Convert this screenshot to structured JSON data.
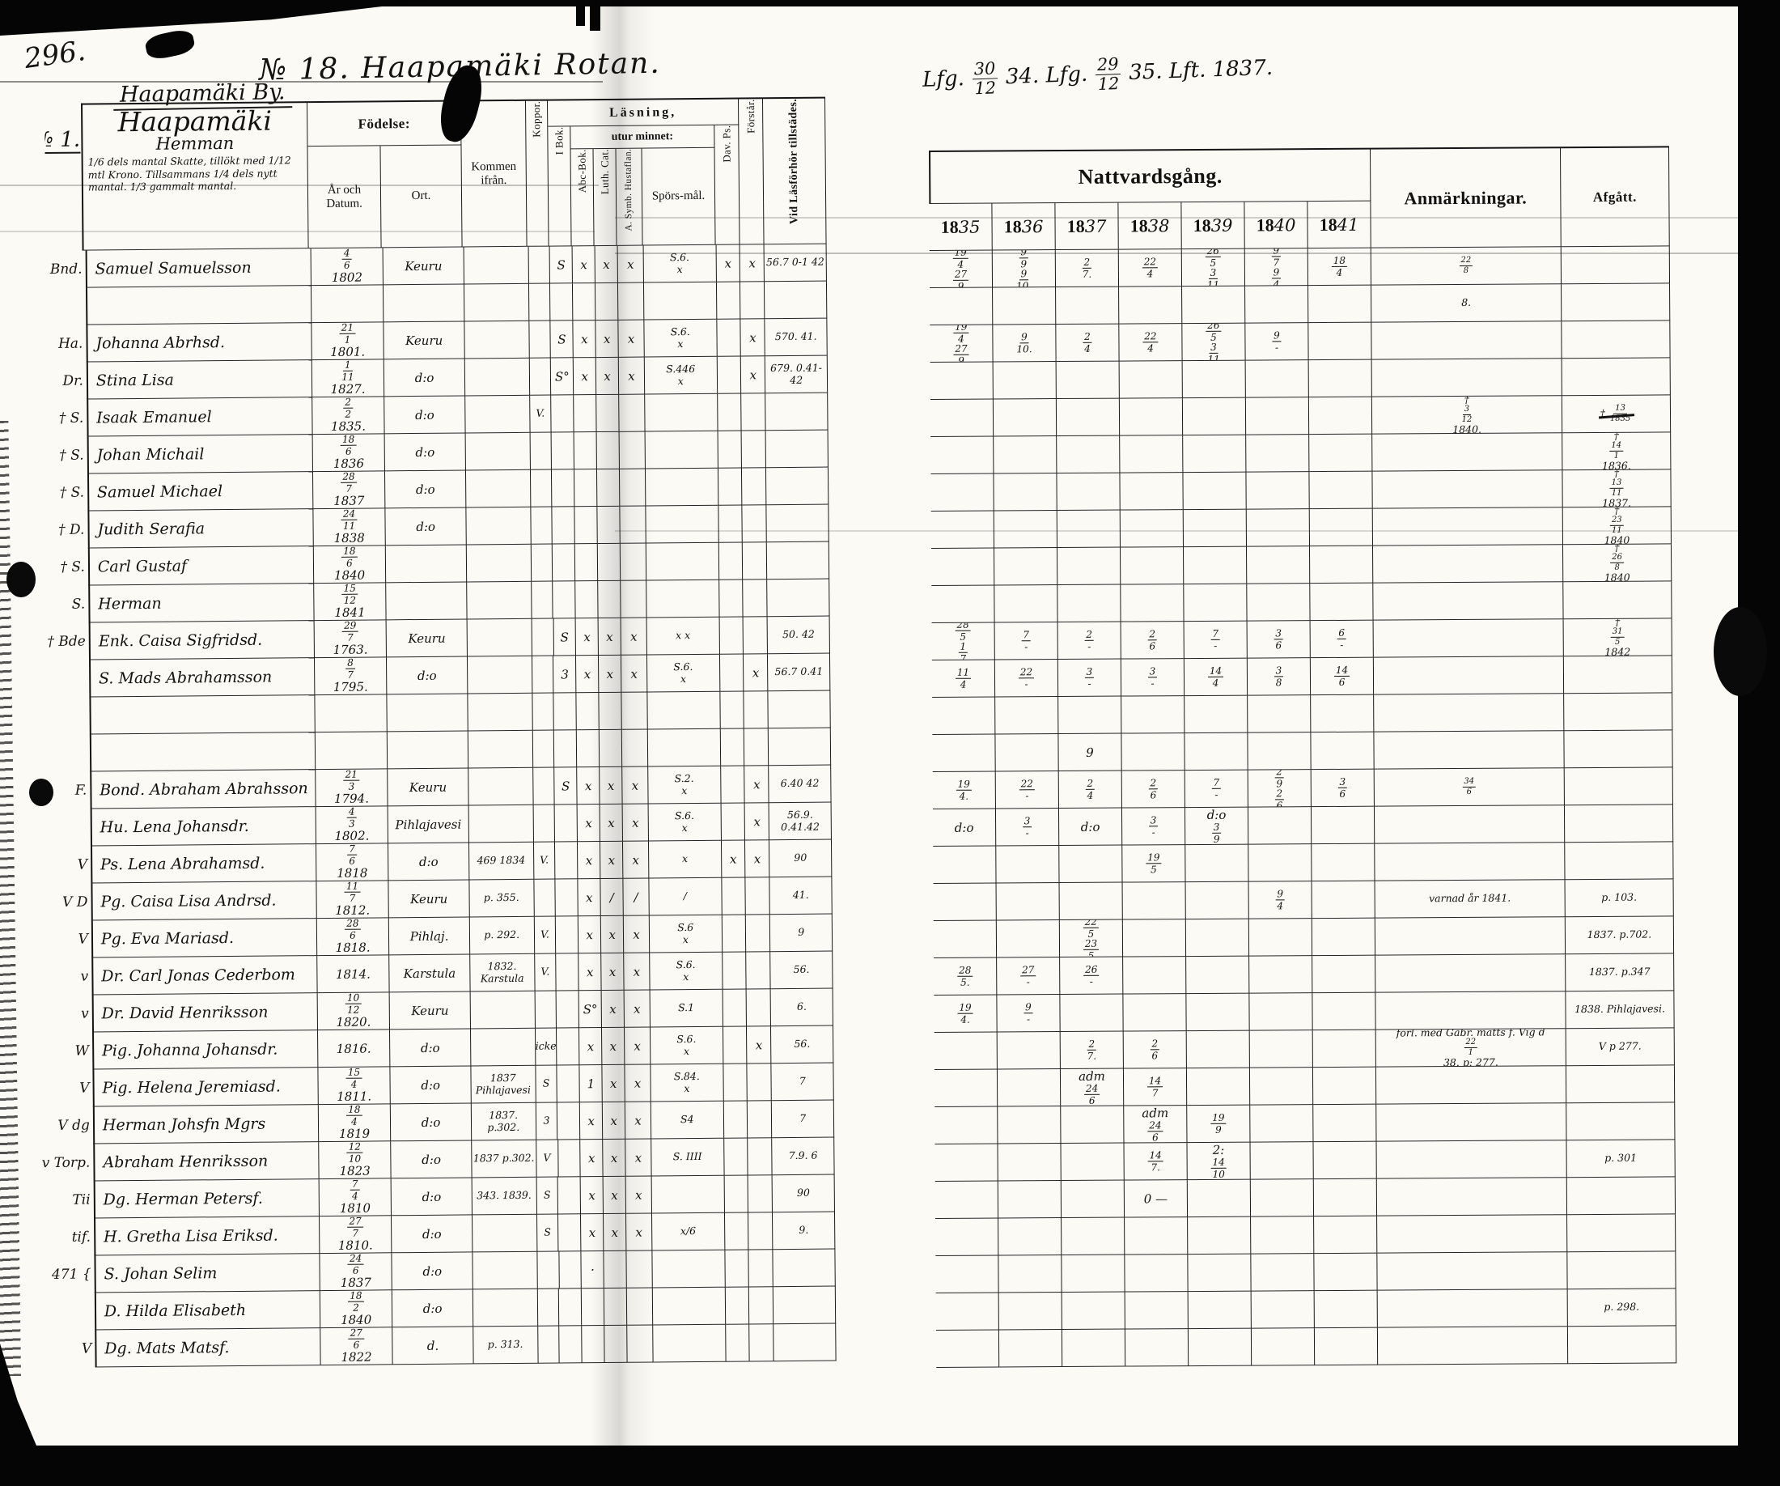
{
  "page": {
    "number": "296.",
    "title": "№ 18.  Haapamäki  Rotan.",
    "village": "Haapamäki By.",
    "top_note": "Lfg. 30/12 34.  Lfg. 29/12 35.  Lft. 1837."
  },
  "left_table": {
    "farm": {
      "no": "№ 1.",
      "name": "Haapamäki",
      "sub": "Hemman",
      "note": "1/6 dels mantal Skatte, till­ökt med 1/12 mtl Krono. Till­sammans 1/4 dels nytt mantal. 1/3 gammalt mantal."
    },
    "cols": {
      "fodelse": "Födelse:",
      "ar": "År och Datum.",
      "ort": "Ort.",
      "kommen": "Kommen ifrån.",
      "koppor": "Koppor.",
      "lasning": "Läsning,",
      "utur": "utur minnet:",
      "ibok": "I Bok.",
      "abc": "Abc-Bok.",
      "luth": "Luth. Cat.",
      "hust": "A. Symb. Hustaflan.",
      "spors": "Spörs-mål.",
      "dav": "Dav. Ps.",
      "forstar": "Förstår.",
      "forhor": "Vid Läsförhör tillstädes."
    }
  },
  "right_table": {
    "natt": "Nattvardsgång.",
    "years": [
      "1835",
      "1836",
      "1837",
      "1838",
      "1839",
      "1840",
      "1841"
    ],
    "anm": "Anmärkningar.",
    "afgatt": "Afgått."
  },
  "rows": [
    {
      "mg": "Bnd.",
      "nm": "Samuel Samuelsson",
      "dt": "4/6",
      "yr": "1802",
      "ort": "Keuru",
      "ib": "S",
      "ab": "x",
      "lu": "x",
      "hu": "x",
      "sp": "S.6.",
      "sp2": "x",
      "dv": "x",
      "fs": "x",
      "fh": "56.7 0-1 42",
      "nt": [
        "19/4 27/9",
        "9/9 9/10.",
        "2/7.",
        "22/4",
        "26/5 3/11",
        "9/7 9/4",
        "18/4"
      ],
      "an": "22/8",
      "af": ""
    },
    {
      "nm": "",
      "nt": [
        "",
        "",
        "",
        "",
        "",
        "",
        ""
      ],
      "an": "8."
    },
    {
      "mg": "Ha.",
      "nm": "Johanna Abrhsd.",
      "dt": "21/1",
      "yr": "1801.",
      "ort": "Keuru",
      "ib": "S",
      "ab": "x",
      "lu": "x",
      "hu": "x",
      "sp": "S.6.",
      "sp2": "x",
      "fs": "x",
      "fh": "570. 41.",
      "nt": [
        "19/4 27/9",
        "9/10.",
        "2/4",
        "22/4",
        "26/5 3/11",
        "9/-",
        ""
      ]
    },
    {
      "mg": "Dr.",
      "nm": "Stina Lisa",
      "dt": "1/11",
      "yr": "1827.",
      "ort": "d:o",
      "ib": "S°",
      "ab": "x",
      "lu": "x",
      "hu": "x",
      "sp": "S.446",
      "sp2": "x",
      "fs": "x",
      "fh": "679. 0.41-42"
    },
    {
      "mg": "† S.",
      "nm": "Isaak Emanuel",
      "dt": "2/2",
      "yr": "1835.",
      "ort": "d:o",
      "kp": "V.",
      "an": "† 3/12 1840.",
      "af": "† 13/1835",
      "afStruck": true
    },
    {
      "mg": "† S.",
      "nm": "Johan Michail",
      "dt": "18/6",
      "yr": "1836",
      "ort": "d:o",
      "af": "† 14/1 1836."
    },
    {
      "mg": "† S.",
      "nm": "Samuel Michael",
      "dt": "28/7",
      "yr": "1837",
      "ort": "d:o",
      "af": "† 13/11 1837."
    },
    {
      "mg": "† D.",
      "nm": "Judith Serafia",
      "dt": "24/11",
      "yr": "1838",
      "ort": "d:o",
      "af": "† 23/11 1840"
    },
    {
      "mg": "† S.",
      "nm": "Carl Gustaf",
      "dt": "18/6",
      "yr": "1840",
      "af": "† 26/8 1840"
    },
    {
      "mg": "S.",
      "nm": "Herman",
      "dt": "15/12",
      "yr": "1841"
    },
    {
      "mg": "† Bde",
      "nm": "Enk. Caisa Sigfridsd.",
      "dt": "29/7",
      "yr": "1763.",
      "ort": "Keuru",
      "ib": "S",
      "ab": "x",
      "lu": "x",
      "hu": "x",
      "sp2": "x x",
      "fh": "50. 42",
      "nt": [
        "28/5 1/7",
        "7/-",
        "2/-",
        "2/6",
        "7/-",
        "3/6",
        "6/-"
      ],
      "af": "† 31/5 1842"
    },
    {
      "nm": "S. Mads Abrahamsson",
      "dt": "8/7",
      "yr": "1795.",
      "ort": "d:o",
      "ib": "3",
      "ab": "x",
      "lu": "x",
      "hu": "x",
      "sp": "S.6.",
      "sp2": "x",
      "fs": "x",
      "fh": "56.7 0.41",
      "nt": [
        "11/4",
        "22/-",
        "3/-",
        "3/-",
        "14/4",
        "3/8",
        "14/6"
      ]
    },
    {},
    {
      "nt": [
        "",
        "",
        "9",
        "",
        "",
        "",
        ""
      ]
    },
    {
      "mg": "F.",
      "nm": "Bond. Abraham Abrahsson",
      "dt": "21/3",
      "yr": "1794.",
      "ort": "Keuru",
      "ib": "S",
      "ab": "x",
      "lu": "x",
      "hu": "x",
      "sp": "S.2.",
      "sp2": "x",
      "fs": "x",
      "fh": "6.40 42",
      "nt": [
        "19/4.",
        "22/-",
        "2/4",
        "2/6",
        "7/-",
        "2/9 2/6",
        "3/6"
      ],
      "an": "34/6"
    },
    {
      "nm": "Hu. Lena Johansdr.",
      "dt": "4/3",
      "yr": "1802.",
      "ort": "Pihlajavesi",
      "ab": "x",
      "lu": "x",
      "hu": "x",
      "sp": "S.6.",
      "sp2": "x",
      "fs": "x",
      "fh": "56.9. 0.41.42",
      "nt": [
        "d:o",
        "3/-",
        "d:o",
        "3/-",
        "d:o 3/9",
        "",
        ""
      ]
    },
    {
      "mg": "V",
      "nm": "Ps. Lena Abrahamsd.",
      "dt": "7/6",
      "yr": "1818",
      "ort": "d:o",
      "km": "469 1834",
      "kp": "V.",
      "ab": "x",
      "lu": "x",
      "hu": "x",
      "sp2": "x",
      "dv": "x",
      "fs": "x",
      "fh": "90",
      "nt": [
        "",
        "",
        "",
        "19/5",
        "",
        "",
        ""
      ]
    },
    {
      "mg": "V D",
      "nm": "Pg. Caisa Lisa Andrsd.",
      "dt": "11/7",
      "yr": "1812.",
      "ort": "Keuru",
      "km": "p. 355.",
      "ab": "x",
      "lu": "/",
      "hu": "/",
      "sp2": "/",
      "fh": "41.",
      "nt": [
        "",
        "",
        "",
        "",
        "",
        "9/4",
        ""
      ],
      "an": "varnad år 1841.",
      "af": "p. 103."
    },
    {
      "mg": "V",
      "nm": "Pg. Eva Mariasd.",
      "dt": "28/6",
      "yr": "1818.",
      "ort": "Pihlaj.",
      "km": "p. 292.",
      "kp": "V.",
      "ab": "x",
      "lu": "x",
      "hu": "x",
      "sp": "S.6",
      "sp2": "x",
      "fh": "9",
      "nt": [
        "",
        "",
        "22/5 23/5",
        "",
        "",
        "",
        ""
      ],
      "af": "1837. p.702."
    },
    {
      "mg": "v",
      "nm": "Dr. Carl Jonas Cederbom",
      "yr": "1814.",
      "ort": "Karstula",
      "km": "1832. Karstula",
      "kp": "V.",
      "ab": "x",
      "lu": "x",
      "hu": "x",
      "sp": "S.6.",
      "sp2": "x",
      "fh": "56.",
      "nt": [
        "28/5.",
        "27/-",
        "26/-",
        "",
        "",
        "",
        ""
      ],
      "af": "1837. p.347"
    },
    {
      "mg": "v",
      "nm": "Dr. David Henriksson",
      "dt": "10/12",
      "yr": "1820.",
      "ort": "Keuru",
      "ab": "S°",
      "lu": "x",
      "hu": "x",
      "sp": "S.1",
      "fh": "6.",
      "nt": [
        "19/4.",
        "9/-",
        "",
        "",
        "",
        "",
        ""
      ],
      "af": "1838. Pihlajavesi."
    },
    {
      "mg": "W",
      "nm": "Pig. Johanna Johansdr.",
      "yr": "1816.",
      "ort": "d:o",
      "kp": "icke",
      "ab": "x",
      "lu": "x",
      "hu": "x",
      "sp": "S.6.",
      "sp2": "x",
      "fs": "x",
      "fh": "56.",
      "nt": [
        "",
        "",
        "2/7.",
        "2/6",
        "",
        "",
        ""
      ],
      "an": "förl. med Gabr. matts f. Vig d 22/1 38.  p: 277.",
      "af": "V p 277."
    },
    {
      "mg": "V",
      "nm": "Pig. Helena Jeremiasd.",
      "dt": "15/4",
      "yr": "1811.",
      "ort": "d:o",
      "km": "1837 Pihlajavesi",
      "kp": "S",
      "ab": "1",
      "lu": "x",
      "hu": "x",
      "sp": "S.84.",
      "sp2": "x",
      "fh": "7",
      "nt": [
        "",
        "",
        "adm 24/6",
        "14/7",
        "",
        "",
        ""
      ]
    },
    {
      "mg": "V dg",
      "nm": "Herman Johsfn Mgrs",
      "dt": "18/4",
      "yr": "1819",
      "ort": "d:o",
      "km": "1837. p.302.",
      "kp": "3",
      "ab": "x",
      "lu": "x",
      "hu": "x",
      "sp": "S4",
      "fh": "7",
      "nt": [
        "",
        "",
        "",
        "adm 24/6",
        "19/9",
        "",
        ""
      ]
    },
    {
      "mg": "v Torp.",
      "nm": "Abraham Henriksson",
      "dt": "12/10",
      "yr": "1823",
      "ort": "d:o",
      "km": "1837 p.302.",
      "kp": "V",
      "ab": "x",
      "lu": "x",
      "hu": "x",
      "sp": "S. IIII",
      "fh": "7.9. 6",
      "nt": [
        "",
        "",
        "",
        "14/7.",
        "2:14/10",
        "",
        ""
      ],
      "af": "p. 301"
    },
    {
      "mg": "Tii",
      "nm": "Dg. Herman Petersf.",
      "dt": "7/4",
      "yr": "1810",
      "ort": "d:o",
      "km": "343. 1839.",
      "kp": "S",
      "ab": "x",
      "lu": "x",
      "hu": "x",
      "fh": "90",
      "nt": [
        "",
        "",
        "",
        "0 —",
        "",
        "",
        ""
      ]
    },
    {
      "mg": "tif.",
      "nm": "H. Gretha Lisa Eriksd.",
      "dt": "27/7",
      "yr": "1810.",
      "ort": "d:o",
      "kp": "S",
      "ab": "x",
      "lu": "x",
      "hu": "x",
      "sp2": "x/6",
      "fh": "9."
    },
    {
      "mg": "471 {",
      "nm": "S. Johan Selim",
      "dt": "24/6",
      "yr": "1837",
      "ort": "d:o",
      "ab": "·"
    },
    {
      "nm": "D. Hilda Elisabeth",
      "dt": "18/2",
      "yr": "1840",
      "ort": "d:o",
      "af": "p. 298."
    },
    {
      "mg": "V",
      "nm": "Dg. Mats Matsf.",
      "dt": "27/6",
      "yr": "1822",
      "ort": "d.",
      "km": "p. 313."
    }
  ]
}
